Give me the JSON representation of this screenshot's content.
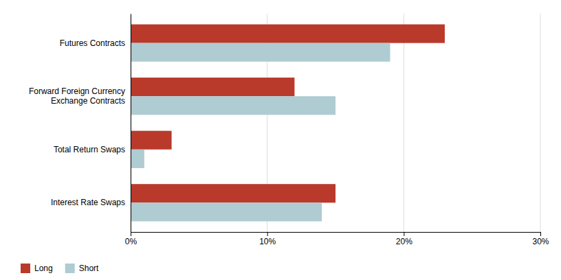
{
  "chart_data": {
    "type": "bar",
    "orientation": "horizontal",
    "categories": [
      "Interest Rate Swaps",
      "Total Return Swaps",
      "Forward Foreign Currency\nExchange Contracts",
      "Futures Contracts"
    ],
    "series": [
      {
        "name": "Long",
        "color": "#b93a2b",
        "values": [
          15.0,
          3.0,
          12.0,
          23.0
        ]
      },
      {
        "name": "Short",
        "color": "#aeccd1",
        "values": [
          14.0,
          1.0,
          15.0,
          19.0
        ]
      }
    ],
    "xlim": [
      0,
      30
    ],
    "xticks": [
      {
        "value": 0,
        "label": "0%"
      },
      {
        "value": 10,
        "label": "10%"
      },
      {
        "value": 20,
        "label": "20%"
      },
      {
        "value": 30,
        "label": "30%"
      }
    ],
    "grid": true,
    "legend": "bottom-left"
  }
}
